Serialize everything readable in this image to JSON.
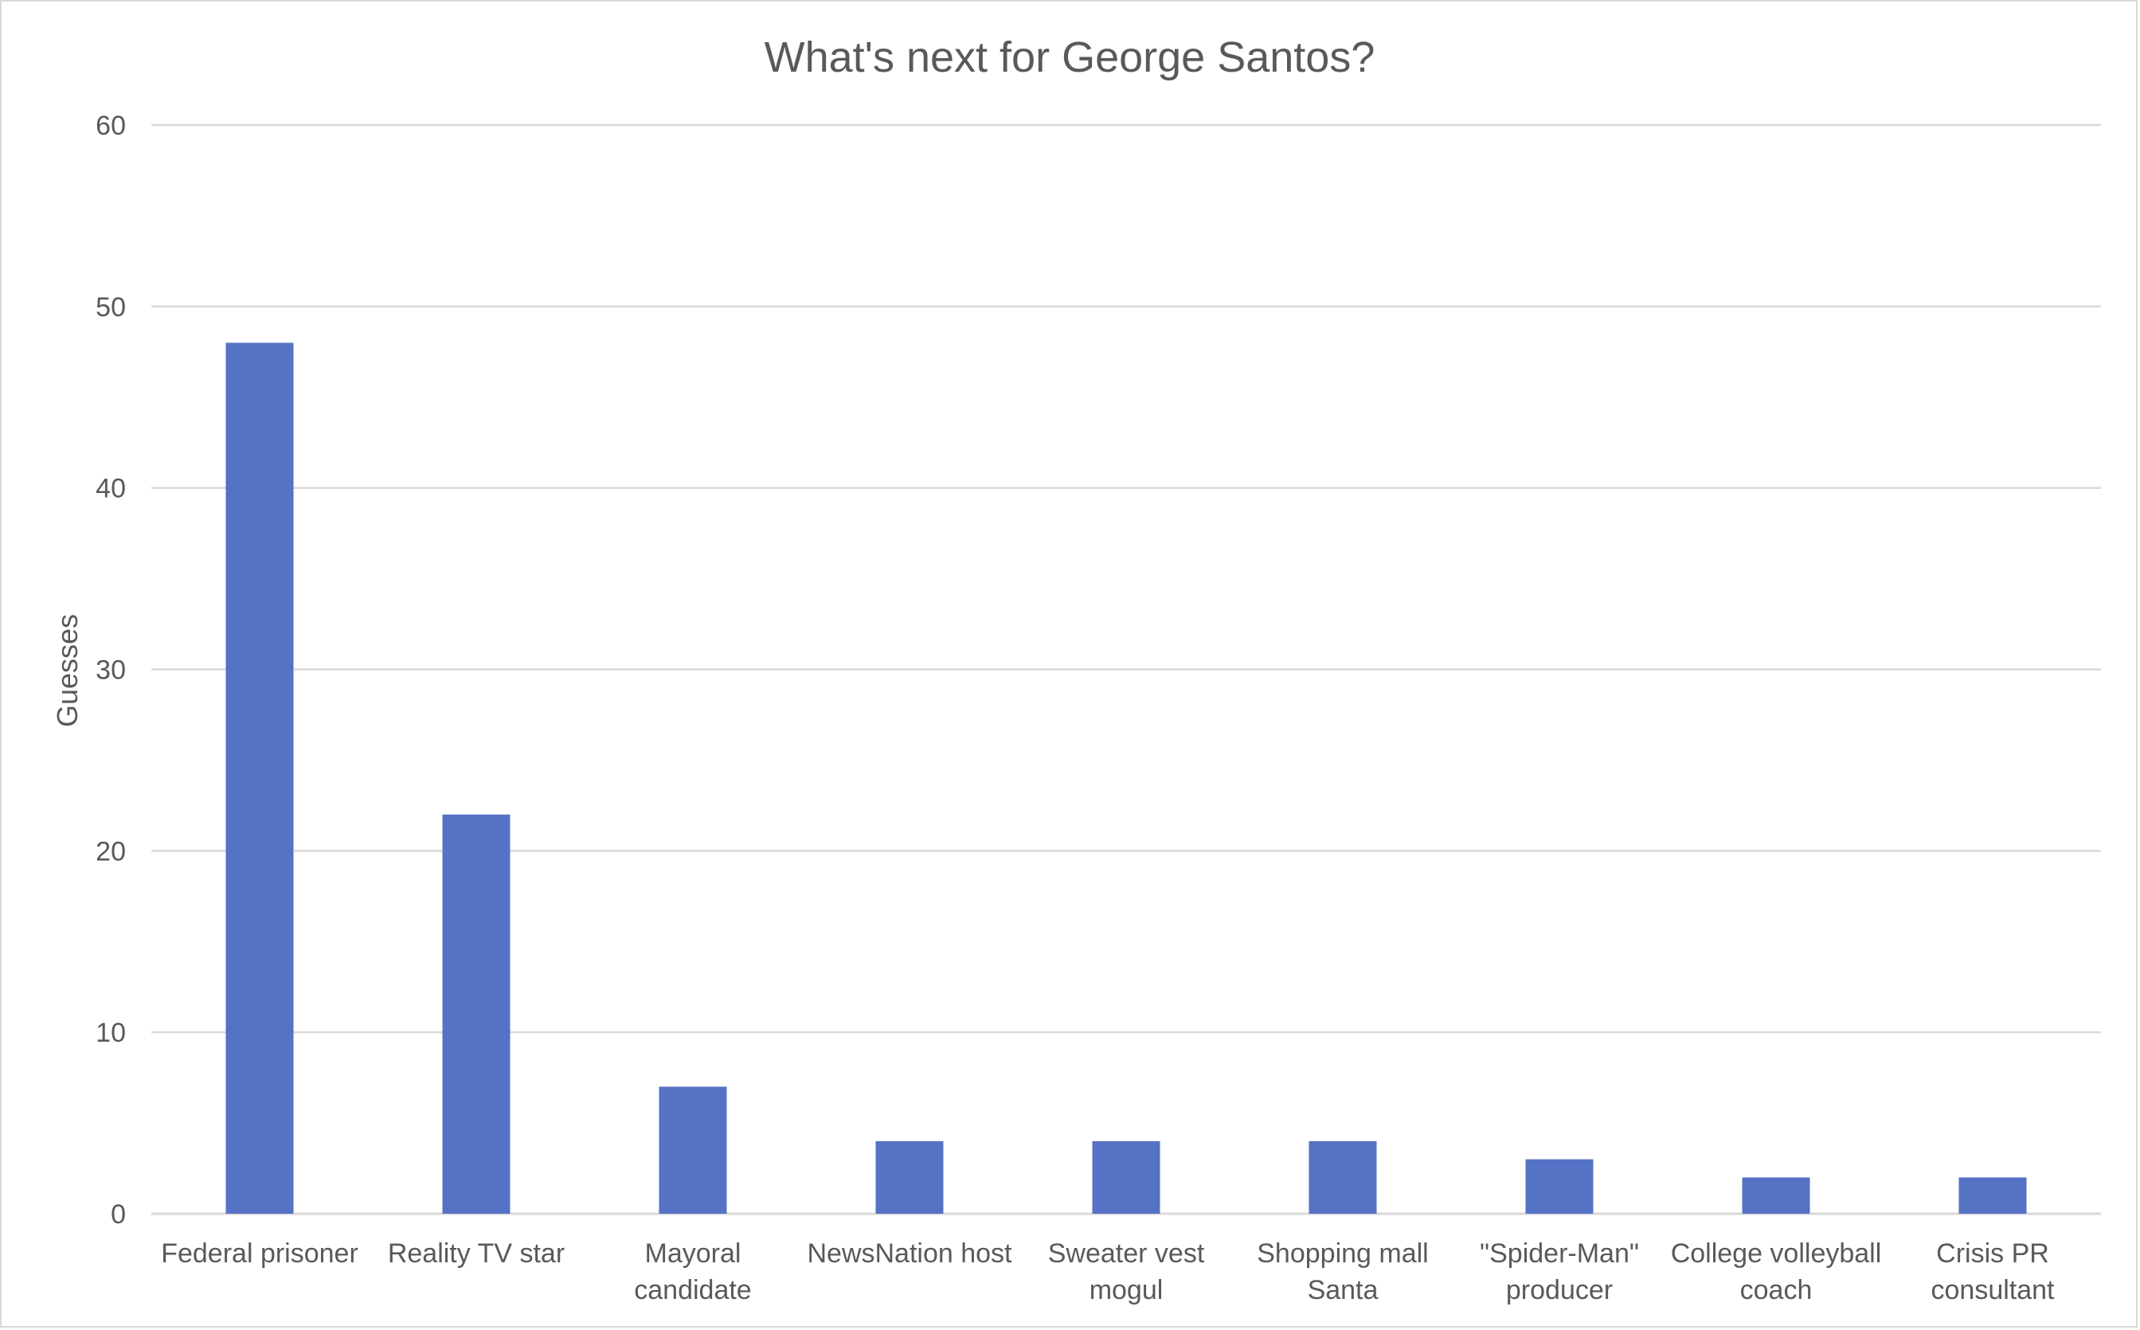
{
  "chart_data": {
    "type": "bar",
    "title": "What's next for George Santos?",
    "xlabel": "",
    "ylabel": "Guesses",
    "ylim": [
      0,
      60
    ],
    "yticks": [
      0,
      10,
      20,
      30,
      40,
      50,
      60
    ],
    "grid": true,
    "legend": "none",
    "bar_color": "#5572c4",
    "categories": [
      [
        "Federal prisoner"
      ],
      [
        "Reality TV star"
      ],
      [
        "Mayoral",
        "candidate"
      ],
      [
        "NewsNation host"
      ],
      [
        "Sweater vest",
        "mogul"
      ],
      [
        "Shopping mall",
        "Santa"
      ],
      [
        "\"Spider-Man\"",
        "producer"
      ],
      [
        "College volleyball",
        "coach"
      ],
      [
        "Crisis PR",
        "consultant"
      ]
    ],
    "values": [
      48,
      22,
      7,
      4,
      4,
      4,
      3,
      2,
      2
    ]
  }
}
